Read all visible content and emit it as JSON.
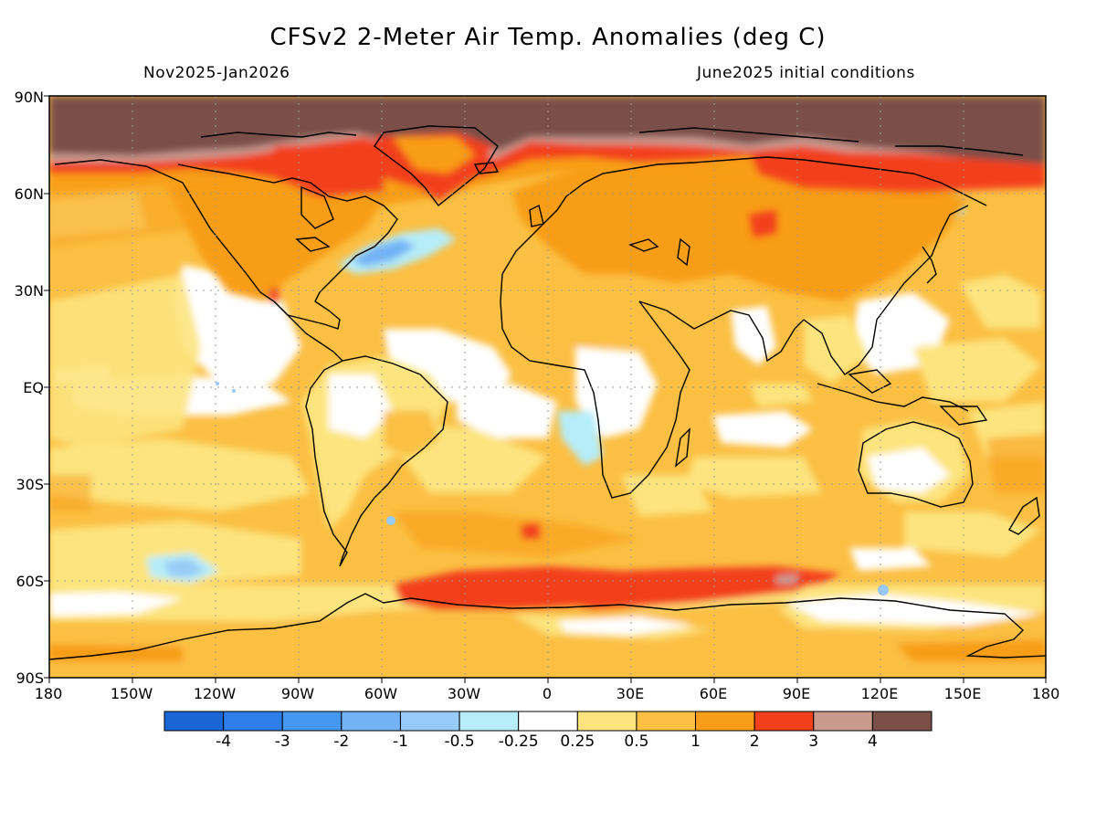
{
  "title": "CFSv2 2-Meter Air Temp. Anomalies (deg C)",
  "period": "Nov2025-Jan2026",
  "init": "June2025 initial conditions",
  "lat_labels": [
    "90N",
    "60N",
    "30N",
    "EQ",
    "30S",
    "60S",
    "90S"
  ],
  "lon_labels": [
    "180",
    "150W",
    "120W",
    "90W",
    "60W",
    "30W",
    "0",
    "30E",
    "60E",
    "90E",
    "120E",
    "150E",
    "180"
  ],
  "colorbar": {
    "colors": [
      "#1a66d6",
      "#2d7ee9",
      "#4597f0",
      "#72b2f5",
      "#97caf7",
      "#b6edf8",
      "#ffffff",
      "#fde47e",
      "#fbbf43",
      "#f89d19",
      "#f3401c",
      "#c9998e",
      "#7a5048"
    ],
    "labels": [
      "-4",
      "-3",
      "-2",
      "-1",
      "-0.5",
      "-0.25",
      "0.25",
      "0.5",
      "1",
      "2",
      "3",
      "4"
    ]
  }
}
